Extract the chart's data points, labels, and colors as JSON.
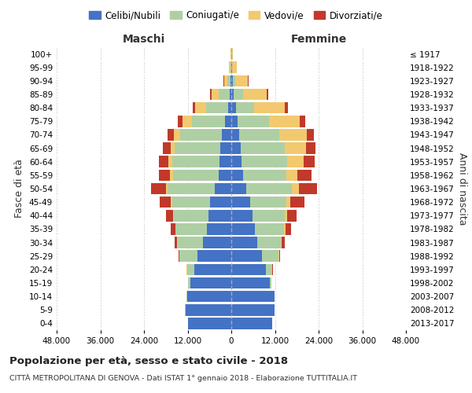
{
  "age_groups": [
    "0-4",
    "5-9",
    "10-14",
    "15-19",
    "20-24",
    "25-29",
    "30-34",
    "35-39",
    "40-44",
    "45-49",
    "50-54",
    "55-59",
    "60-64",
    "65-69",
    "70-74",
    "75-79",
    "80-84",
    "85-89",
    "90-94",
    "95-99",
    "100+"
  ],
  "birth_years": [
    "2013-2017",
    "2008-2012",
    "2003-2007",
    "1998-2002",
    "1993-1997",
    "1988-1992",
    "1983-1987",
    "1978-1982",
    "1973-1977",
    "1968-1972",
    "1963-1967",
    "1958-1962",
    "1953-1957",
    "1948-1952",
    "1943-1947",
    "1938-1942",
    "1933-1937",
    "1928-1932",
    "1923-1927",
    "1918-1922",
    "≤ 1917"
  ],
  "male_celibe": [
    11800,
    12500,
    12200,
    11200,
    10200,
    9200,
    7800,
    6800,
    6200,
    5800,
    4500,
    3500,
    3200,
    3000,
    2500,
    1800,
    900,
    500,
    250,
    80,
    30
  ],
  "male_coniugato": [
    100,
    200,
    200,
    600,
    2000,
    5000,
    7000,
    8500,
    9500,
    10500,
    13000,
    12500,
    13000,
    12500,
    11500,
    9000,
    6000,
    3000,
    900,
    200,
    50
  ],
  "male_vedovo": [
    5,
    10,
    10,
    15,
    30,
    60,
    100,
    150,
    250,
    350,
    500,
    800,
    1000,
    1200,
    1800,
    2500,
    3000,
    2000,
    800,
    300,
    100
  ],
  "male_divorziato": [
    20,
    30,
    20,
    30,
    80,
    250,
    600,
    1100,
    2000,
    3000,
    4000,
    3200,
    2800,
    2200,
    1800,
    1500,
    800,
    300,
    120,
    40,
    10
  ],
  "female_celibe": [
    11200,
    11800,
    11800,
    10500,
    9500,
    8500,
    7200,
    6500,
    5800,
    5200,
    4200,
    3200,
    2800,
    2600,
    2200,
    1800,
    1200,
    700,
    350,
    150,
    50
  ],
  "female_coniugato": [
    100,
    150,
    150,
    500,
    1800,
    4500,
    6500,
    8000,
    9000,
    10000,
    12500,
    12000,
    12500,
    12000,
    11000,
    8500,
    5000,
    2500,
    700,
    150,
    30
  ],
  "female_vedovo": [
    5,
    10,
    10,
    20,
    50,
    100,
    200,
    350,
    600,
    1000,
    1800,
    3000,
    4500,
    6000,
    7500,
    8500,
    8500,
    6500,
    3500,
    1200,
    400
  ],
  "female_divorziato": [
    20,
    30,
    20,
    50,
    150,
    400,
    800,
    1500,
    2500,
    3800,
    5000,
    3800,
    3200,
    2600,
    2000,
    1600,
    900,
    400,
    150,
    50,
    10
  ],
  "colors": {
    "celibe": "#4472C4",
    "coniugato": "#AECFA4",
    "vedovo": "#F2C96E",
    "divorziato": "#C0392B"
  },
  "xlim": 48000,
  "xlabel_left": "Maschi",
  "xlabel_right": "Femmine",
  "ylabel": "Fasce di età",
  "ylabel_right": "Anni di nascita",
  "title": "Popolazione per età, sesso e stato civile - 2018",
  "subtitle": "CITTÀ METROPOLITANA DI GENOVA - Dati ISTAT 1° gennaio 2018 - Elaborazione TUTTITALIA.IT",
  "legend_labels": [
    "Celibi/Nubili",
    "Coniugati/e",
    "Vedovi/e",
    "Divorziati/e"
  ],
  "background_color": "#ffffff",
  "grid_color": "#cccccc"
}
